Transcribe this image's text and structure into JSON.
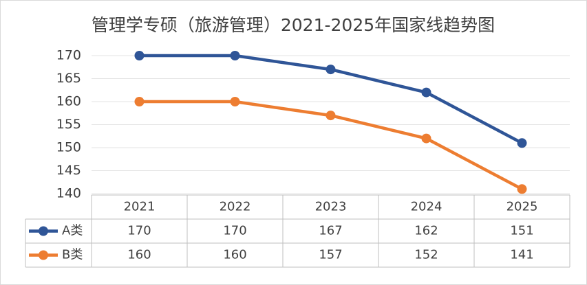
{
  "chart_data": {
    "type": "line",
    "title": "管理学专硕（旅游管理）2021-2025年国家线趋势图",
    "categories": [
      "2021",
      "2022",
      "2023",
      "2024",
      "2025"
    ],
    "series": [
      {
        "name": "A类",
        "color": "#2f5597",
        "values": [
          170,
          170,
          167,
          162,
          151
        ]
      },
      {
        "name": "B类",
        "color": "#ed7d31",
        "values": [
          160,
          160,
          157,
          152,
          141
        ]
      }
    ],
    "ylim": [
      140,
      170
    ],
    "yticks": [
      140,
      145,
      150,
      155,
      160,
      165,
      170
    ],
    "grid": true,
    "data_table": true
  }
}
